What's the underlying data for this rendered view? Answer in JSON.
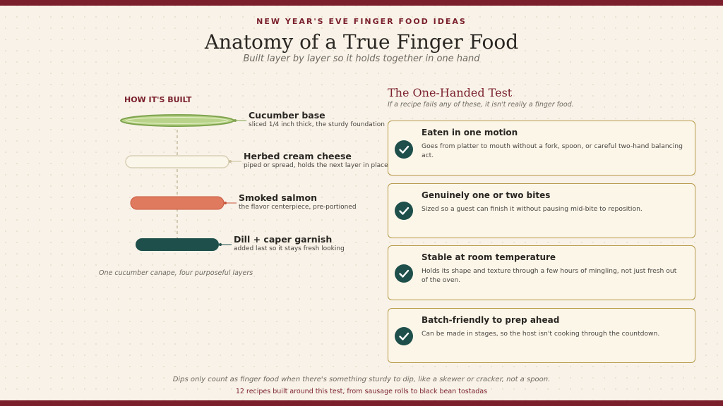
{
  "header": {
    "eyebrow": "NEW YEAR'S EVE FINGER FOOD IDEAS",
    "title": "Anatomy of a True Finger Food",
    "subtitle": "Built layer by layer so it holds together in one hand"
  },
  "diagram": {
    "section_label": "HOW IT'S BUILT",
    "caption": "One cucumber canape, four purposeful layers",
    "layers": [
      {
        "name": "Cucumber base",
        "desc": "sliced 1/4 inch thick, the sturdy foundation",
        "color": "#b9d48a"
      },
      {
        "name": "Herbed cream cheese",
        "desc": "piped or spread, holds the next layer in place",
        "color": "#fbf6ea"
      },
      {
        "name": "Smoked salmon",
        "desc": "the flavor centerpiece, pre-portioned",
        "color": "#e07a5f"
      },
      {
        "name": "Dill + caper garnish",
        "desc": "added last so it stays fresh looking",
        "color": "#1e4f4a"
      }
    ]
  },
  "test": {
    "title": "The One-Handed Test",
    "subtitle": "If a recipe fails any of these, it isn't really a finger food.",
    "items": [
      {
        "title": "Eaten in one motion",
        "body": "Goes from platter to mouth without a fork, spoon, or careful two-hand balancing act.",
        "icon": "check-icon"
      },
      {
        "title": "Genuinely one or two bites",
        "body": "Sized so a guest can finish it without pausing mid-bite to reposition.",
        "icon": "check-icon"
      },
      {
        "title": "Stable at room temperature",
        "body": "Holds its shape and texture through a few hours of mingling, not just fresh out of the oven.",
        "icon": "check-icon"
      },
      {
        "title": "Batch-friendly to prep ahead",
        "body": "Can be made in stages, so the host isn't cooking through the countdown.",
        "icon": "check-icon"
      }
    ]
  },
  "footer": {
    "note": "Dips only count as finger food when there's something sturdy to dip, like a skewer or cracker, not a spoon.",
    "tagline": "12 recipes built around this test, from sausage rolls to black bean tostadas"
  },
  "colors": {
    "accent": "#7a1f2b",
    "teal": "#1e4f4a",
    "card_border": "#b89a4a"
  }
}
